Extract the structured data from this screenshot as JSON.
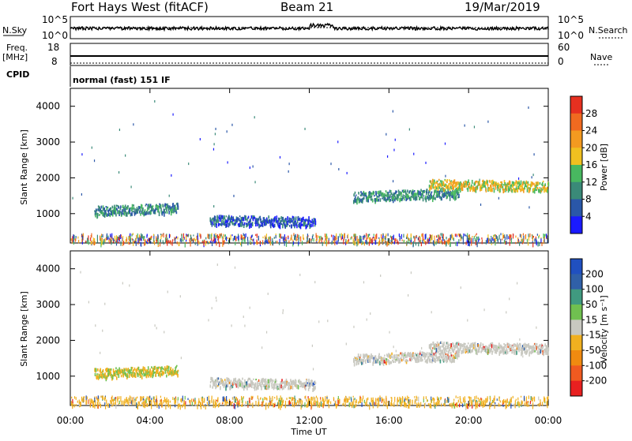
{
  "header": {
    "station": "Fort Hays West (fitACF)",
    "beam": "Beam 21",
    "date": "19/Mar/2019"
  },
  "strip_panels": {
    "nsky_label": "N.Sky",
    "nsearch_label": "N.Search",
    "nsky_ticks": [
      "10^5",
      "10^0"
    ],
    "nsearch_ticks": [
      "10^5",
      "10^0"
    ],
    "freq_label": "Freq.",
    "freq_unit": "[MHz]",
    "freq_ticks": [
      "18",
      "8"
    ],
    "nave_label": "Nave",
    "nave_ticks": [
      "60",
      "0"
    ],
    "cpid_label": "CPID",
    "cpid_text": "normal (fast) 151 IF"
  },
  "colors": {
    "power_scale": [
      "#1a1aff",
      "#2a57a8",
      "#3a8a78",
      "#48b860",
      "#f0c020",
      "#f39a20",
      "#f06a20",
      "#e63020"
    ],
    "velocity_scale": [
      "#2050c0",
      "#3060a8",
      "#409a80",
      "#70c050",
      "#c8c8c0",
      "#f0b020",
      "#f08a10",
      "#f05a20",
      "#e82020"
    ]
  },
  "chart_data": [
    {
      "type": "heatmap",
      "name": "power",
      "xlabel": "",
      "ylabel": "Slant Range [km]",
      "xticks": [
        "00:00",
        "04:00",
        "08:00",
        "12:00",
        "16:00",
        "20:00",
        "00:00"
      ],
      "ylim": [
        180,
        4500
      ],
      "yticks": [
        1000,
        2000,
        3000,
        4000
      ],
      "colorbar": {
        "label": "Power [dB]",
        "ticks": [
          "28",
          "24",
          "20",
          "16",
          "12",
          "8",
          "4"
        ]
      },
      "echo_bands": [
        {
          "t_start": 1.2,
          "t_end": 5.4,
          "range": 1100,
          "level": "mid"
        },
        {
          "t_start": 7.0,
          "t_end": 12.3,
          "range": 850,
          "level": "low"
        },
        {
          "t_start": 14.2,
          "t_end": 19.5,
          "range": 1500,
          "level": "mid"
        },
        {
          "t_start": 18.0,
          "t_end": 24.0,
          "range": 1850,
          "level": "high"
        }
      ]
    },
    {
      "type": "heatmap",
      "name": "velocity",
      "xlabel": "Time UT",
      "ylabel": "Slant Range [km]",
      "xticks": [
        "00:00",
        "04:00",
        "08:00",
        "12:00",
        "16:00",
        "20:00",
        "00:00"
      ],
      "ylim": [
        180,
        4500
      ],
      "yticks": [
        1000,
        2000,
        3000,
        4000
      ],
      "colorbar": {
        "label": "Velocity [m s⁻¹]",
        "ticks": [
          "200",
          "100",
          "50",
          "15",
          "-15",
          "-50",
          "-100",
          "-200"
        ]
      }
    }
  ]
}
